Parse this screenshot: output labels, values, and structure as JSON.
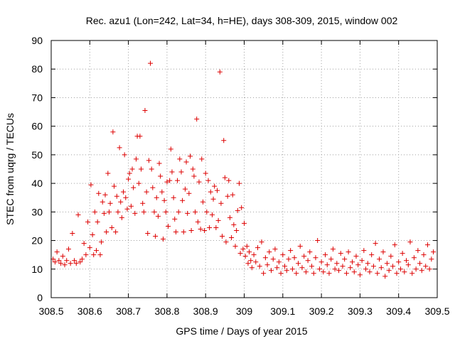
{
  "chart_data": {
    "type": "scatter",
    "title": "Rec. azu1 (Lon=242, Lat=34, h=HE), days 308-309, 2015, window 002",
    "xlabel": "GPS time / Days of year 2015",
    "ylabel": "STEC from uqrg / TECUs",
    "xlim": [
      308.5,
      309.5
    ],
    "ylim": [
      0,
      90
    ],
    "xticks": [
      "308.5",
      "308.6",
      "308.7",
      "308.8",
      "308.9",
      "309",
      "309.1",
      "309.2",
      "309.3",
      "309.4",
      "309.5"
    ],
    "yticks": [
      "0",
      "10",
      "20",
      "30",
      "40",
      "50",
      "60",
      "70",
      "80",
      "90"
    ],
    "grid": "dotted",
    "marker": "+",
    "color": "#dd0000",
    "series": [
      {
        "name": "STEC",
        "points": [
          [
            308.505,
            13.5
          ],
          [
            308.51,
            12.5
          ],
          [
            308.515,
            16
          ],
          [
            308.52,
            13
          ],
          [
            308.525,
            12
          ],
          [
            308.53,
            14.5
          ],
          [
            308.535,
            11.5
          ],
          [
            308.54,
            13
          ],
          [
            308.545,
            17
          ],
          [
            308.55,
            12
          ],
          [
            308.555,
            22.5
          ],
          [
            308.56,
            13
          ],
          [
            308.565,
            12
          ],
          [
            308.57,
            29
          ],
          [
            308.575,
            12.5
          ],
          [
            308.58,
            13.5
          ],
          [
            308.585,
            19
          ],
          [
            308.59,
            15
          ],
          [
            308.595,
            26.5
          ],
          [
            308.6,
            17.5
          ],
          [
            308.603,
            39.5
          ],
          [
            308.607,
            22
          ],
          [
            308.61,
            15
          ],
          [
            308.613,
            30
          ],
          [
            308.617,
            16.5
          ],
          [
            308.62,
            26.5
          ],
          [
            308.623,
            36.5
          ],
          [
            308.627,
            15
          ],
          [
            308.63,
            19.5
          ],
          [
            308.633,
            33.5
          ],
          [
            308.637,
            29.5
          ],
          [
            308.64,
            36
          ],
          [
            308.643,
            23
          ],
          [
            308.647,
            43.5
          ],
          [
            308.65,
            30
          ],
          [
            308.653,
            33
          ],
          [
            308.657,
            24.5
          ],
          [
            308.66,
            58
          ],
          [
            308.663,
            39
          ],
          [
            308.667,
            23
          ],
          [
            308.67,
            35.5
          ],
          [
            308.673,
            30
          ],
          [
            308.677,
            52.5
          ],
          [
            308.68,
            33.5
          ],
          [
            308.683,
            28
          ],
          [
            308.687,
            37
          ],
          [
            308.69,
            50
          ],
          [
            308.693,
            35
          ],
          [
            308.697,
            31
          ],
          [
            308.7,
            41.5
          ],
          [
            308.703,
            43.5
          ],
          [
            308.707,
            32
          ],
          [
            308.71,
            45
          ],
          [
            308.713,
            38.5
          ],
          [
            308.717,
            29.5
          ],
          [
            308.72,
            48.5
          ],
          [
            308.723,
            56.5
          ],
          [
            308.727,
            40
          ],
          [
            308.73,
            56.5
          ],
          [
            308.733,
            45
          ],
          [
            308.737,
            33
          ],
          [
            308.74,
            30
          ],
          [
            308.743,
            65.5
          ],
          [
            308.747,
            37
          ],
          [
            308.75,
            22.5
          ],
          [
            308.753,
            48
          ],
          [
            308.757,
            82
          ],
          [
            308.76,
            45
          ],
          [
            308.763,
            38.5
          ],
          [
            308.767,
            30
          ],
          [
            308.77,
            21.5
          ],
          [
            308.773,
            35
          ],
          [
            308.777,
            28.5
          ],
          [
            308.78,
            47
          ],
          [
            308.783,
            42.5
          ],
          [
            308.787,
            37
          ],
          [
            308.79,
            20.5
          ],
          [
            308.793,
            34
          ],
          [
            308.797,
            30
          ],
          [
            308.8,
            40.5
          ],
          [
            308.803,
            25
          ],
          [
            308.807,
            41
          ],
          [
            308.81,
            52
          ],
          [
            308.813,
            44
          ],
          [
            308.817,
            35
          ],
          [
            308.82,
            27.5
          ],
          [
            308.823,
            23
          ],
          [
            308.827,
            41
          ],
          [
            308.83,
            30
          ],
          [
            308.833,
            48.5
          ],
          [
            308.837,
            44
          ],
          [
            308.84,
            34
          ],
          [
            308.843,
            23
          ],
          [
            308.847,
            38
          ],
          [
            308.85,
            47.5
          ],
          [
            308.853,
            29.5
          ],
          [
            308.857,
            36.5
          ],
          [
            308.86,
            49.5
          ],
          [
            308.863,
            23.5
          ],
          [
            308.867,
            45
          ],
          [
            308.87,
            42.5
          ],
          [
            308.873,
            30
          ],
          [
            308.877,
            62.5
          ],
          [
            308.88,
            26.5
          ],
          [
            308.883,
            40.5
          ],
          [
            308.887,
            24
          ],
          [
            308.89,
            48.5
          ],
          [
            308.893,
            33.5
          ],
          [
            308.897,
            23.5
          ],
          [
            308.9,
            43.5
          ],
          [
            308.903,
            30
          ],
          [
            308.907,
            41
          ],
          [
            308.91,
            24.5
          ],
          [
            308.913,
            37
          ],
          [
            308.917,
            29
          ],
          [
            308.92,
            34.5
          ],
          [
            308.923,
            39
          ],
          [
            308.927,
            24.5
          ],
          [
            308.93,
            37.5
          ],
          [
            308.933,
            27
          ],
          [
            308.937,
            79
          ],
          [
            308.94,
            33
          ],
          [
            308.943,
            21.5
          ],
          [
            308.947,
            55
          ],
          [
            308.95,
            42
          ],
          [
            308.953,
            19.5
          ],
          [
            308.957,
            35.5
          ],
          [
            308.96,
            41
          ],
          [
            308.963,
            28
          ],
          [
            308.967,
            21
          ],
          [
            308.97,
            36
          ],
          [
            308.973,
            25.5
          ],
          [
            308.977,
            18
          ],
          [
            308.98,
            23.5
          ],
          [
            308.983,
            30.5
          ],
          [
            308.987,
            40
          ],
          [
            308.99,
            15.5
          ],
          [
            308.993,
            31.5
          ],
          [
            308.997,
            17
          ],
          [
            309.0,
            26
          ],
          [
            309.003,
            14.5
          ],
          [
            309.007,
            18
          ],
          [
            309.01,
            12
          ],
          [
            309.013,
            16
          ],
          [
            309.017,
            13
          ],
          [
            309.02,
            10.5
          ],
          [
            309.025,
            15
          ],
          [
            309.03,
            12.5
          ],
          [
            309.035,
            17.5
          ],
          [
            309.04,
            11
          ],
          [
            309.045,
            19.5
          ],
          [
            309.05,
            8.5
          ],
          [
            309.055,
            14
          ],
          [
            309.06,
            11.5
          ],
          [
            309.065,
            16
          ],
          [
            309.07,
            9.5
          ],
          [
            309.075,
            13.5
          ],
          [
            309.08,
            17
          ],
          [
            309.085,
            10.5
          ],
          [
            309.09,
            12.5
          ],
          [
            309.095,
            8.5
          ],
          [
            309.1,
            15
          ],
          [
            309.105,
            11
          ],
          [
            309.11,
            9.5
          ],
          [
            309.115,
            13.5
          ],
          [
            309.12,
            16.5
          ],
          [
            309.125,
            10
          ],
          [
            309.13,
            14
          ],
          [
            309.135,
            8.5
          ],
          [
            309.14,
            12
          ],
          [
            309.145,
            18
          ],
          [
            309.15,
            10.5
          ],
          [
            309.155,
            14.5
          ],
          [
            309.16,
            9
          ],
          [
            309.165,
            13
          ],
          [
            309.17,
            16
          ],
          [
            309.175,
            11
          ],
          [
            309.18,
            8.5
          ],
          [
            309.185,
            14
          ],
          [
            309.19,
            20
          ],
          [
            309.195,
            10
          ],
          [
            309.2,
            12.5
          ],
          [
            309.205,
            9
          ],
          [
            309.21,
            15
          ],
          [
            309.215,
            11.5
          ],
          [
            309.22,
            8.5
          ],
          [
            309.225,
            13.5
          ],
          [
            309.23,
            17
          ],
          [
            309.235,
            10
          ],
          [
            309.24,
            12
          ],
          [
            309.245,
            9.5
          ],
          [
            309.25,
            15.5
          ],
          [
            309.255,
            11
          ],
          [
            309.26,
            13.5
          ],
          [
            309.265,
            8.5
          ],
          [
            309.27,
            16
          ],
          [
            309.275,
            10.5
          ],
          [
            309.28,
            12.5
          ],
          [
            309.285,
            9
          ],
          [
            309.29,
            14.5
          ],
          [
            309.295,
            11.5
          ],
          [
            309.3,
            8
          ],
          [
            309.305,
            13
          ],
          [
            309.31,
            16.5
          ],
          [
            309.315,
            10
          ],
          [
            309.32,
            12
          ],
          [
            309.325,
            9
          ],
          [
            309.33,
            15
          ],
          [
            309.335,
            11
          ],
          [
            309.34,
            19
          ],
          [
            309.345,
            8.5
          ],
          [
            309.35,
            13.5
          ],
          [
            309.355,
            10.5
          ],
          [
            309.36,
            16
          ],
          [
            309.365,
            7.5
          ],
          [
            309.37,
            12
          ],
          [
            309.375,
            9.5
          ],
          [
            309.38,
            14.5
          ],
          [
            309.385,
            11
          ],
          [
            309.39,
            18.5
          ],
          [
            309.395,
            8.5
          ],
          [
            309.4,
            12.5
          ],
          [
            309.405,
            10
          ],
          [
            309.41,
            15.5
          ],
          [
            309.415,
            9
          ],
          [
            309.42,
            13
          ],
          [
            309.425,
            11.5
          ],
          [
            309.43,
            19.5
          ],
          [
            309.435,
            8.5
          ],
          [
            309.44,
            14
          ],
          [
            309.445,
            10
          ],
          [
            309.45,
            16.5
          ],
          [
            309.455,
            12
          ],
          [
            309.46,
            9.5
          ],
          [
            309.465,
            15
          ],
          [
            309.47,
            11
          ],
          [
            309.475,
            18.5
          ],
          [
            309.48,
            10
          ],
          [
            309.485,
            13.5
          ],
          [
            309.49,
            16
          ]
        ]
      }
    ]
  }
}
